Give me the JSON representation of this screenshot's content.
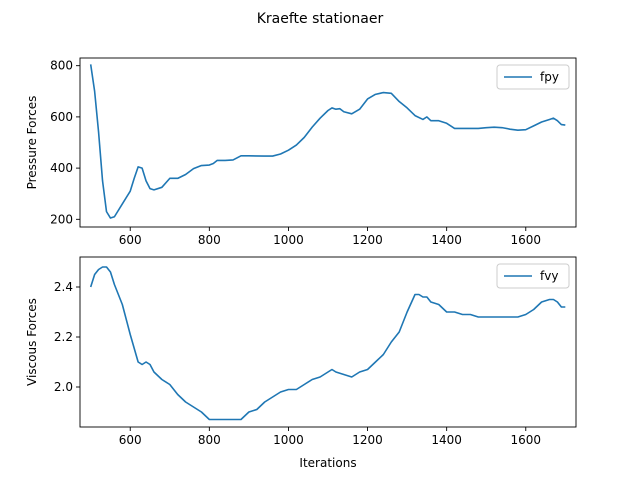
{
  "title": "Kraefte stationaer",
  "colors": {
    "series": "#1f77b4",
    "axis": "#000000",
    "legend_border": "#cccccc"
  },
  "chart_data": [
    {
      "type": "line",
      "ylabel": "Pressure Forces",
      "xlabel": "",
      "xlim": [
        473,
        1727
      ],
      "ylim": [
        170,
        830
      ],
      "xticks": [
        600,
        800,
        1000,
        1200,
        1400,
        1600
      ],
      "yticks": [
        200,
        400,
        600,
        800
      ],
      "legend": "top-right",
      "grid": false,
      "series": [
        {
          "name": "fpy",
          "points": [
            [
              500,
              805
            ],
            [
              510,
              700
            ],
            [
              520,
              540
            ],
            [
              530,
              350
            ],
            [
              540,
              230
            ],
            [
              550,
              205
            ],
            [
              560,
              210
            ],
            [
              580,
              260
            ],
            [
              600,
              310
            ],
            [
              610,
              360
            ],
            [
              620,
              405
            ],
            [
              630,
              400
            ],
            [
              640,
              350
            ],
            [
              650,
              320
            ],
            [
              660,
              315
            ],
            [
              680,
              325
            ],
            [
              700,
              360
            ],
            [
              720,
              360
            ],
            [
              740,
              375
            ],
            [
              760,
              398
            ],
            [
              780,
              410
            ],
            [
              800,
              412
            ],
            [
              810,
              418
            ],
            [
              820,
              430
            ],
            [
              840,
              430
            ],
            [
              860,
              432
            ],
            [
              880,
              448
            ],
            [
              900,
              448
            ],
            [
              940,
              447
            ],
            [
              960,
              447
            ],
            [
              980,
              455
            ],
            [
              1000,
              470
            ],
            [
              1020,
              490
            ],
            [
              1040,
              520
            ],
            [
              1060,
              560
            ],
            [
              1080,
              595
            ],
            [
              1100,
              625
            ],
            [
              1110,
              635
            ],
            [
              1120,
              630
            ],
            [
              1130,
              632
            ],
            [
              1140,
              620
            ],
            [
              1160,
              612
            ],
            [
              1180,
              630
            ],
            [
              1200,
              670
            ],
            [
              1220,
              688
            ],
            [
              1240,
              695
            ],
            [
              1260,
              692
            ],
            [
              1280,
              660
            ],
            [
              1300,
              635
            ],
            [
              1320,
              605
            ],
            [
              1340,
              590
            ],
            [
              1350,
              600
            ],
            [
              1360,
              585
            ],
            [
              1380,
              585
            ],
            [
              1400,
              575
            ],
            [
              1420,
              555
            ],
            [
              1440,
              555
            ],
            [
              1460,
              555
            ],
            [
              1480,
              555
            ],
            [
              1500,
              558
            ],
            [
              1520,
              560
            ],
            [
              1540,
              558
            ],
            [
              1560,
              552
            ],
            [
              1580,
              548
            ],
            [
              1600,
              550
            ],
            [
              1620,
              565
            ],
            [
              1640,
              580
            ],
            [
              1660,
              590
            ],
            [
              1670,
              595
            ],
            [
              1680,
              585
            ],
            [
              1690,
              570
            ],
            [
              1700,
              568
            ]
          ]
        }
      ]
    },
    {
      "type": "line",
      "ylabel": "Viscous Forces",
      "xlabel": "Iterations",
      "xlim": [
        473,
        1727
      ],
      "ylim": [
        1.84,
        2.52
      ],
      "xticks": [
        600,
        800,
        1000,
        1200,
        1400,
        1600
      ],
      "yticks": [
        2.0,
        2.2,
        2.4
      ],
      "legend": "top-right",
      "grid": false,
      "series": [
        {
          "name": "fvy",
          "points": [
            [
              500,
              2.4
            ],
            [
              510,
              2.45
            ],
            [
              520,
              2.47
            ],
            [
              530,
              2.48
            ],
            [
              540,
              2.48
            ],
            [
              550,
              2.46
            ],
            [
              560,
              2.41
            ],
            [
              580,
              2.33
            ],
            [
              600,
              2.21
            ],
            [
              620,
              2.1
            ],
            [
              630,
              2.09
            ],
            [
              640,
              2.1
            ],
            [
              650,
              2.09
            ],
            [
              660,
              2.06
            ],
            [
              680,
              2.03
            ],
            [
              700,
              2.01
            ],
            [
              720,
              1.97
            ],
            [
              740,
              1.94
            ],
            [
              760,
              1.92
            ],
            [
              780,
              1.9
            ],
            [
              800,
              1.87
            ],
            [
              820,
              1.87
            ],
            [
              840,
              1.87
            ],
            [
              860,
              1.87
            ],
            [
              880,
              1.87
            ],
            [
              900,
              1.9
            ],
            [
              920,
              1.91
            ],
            [
              940,
              1.94
            ],
            [
              960,
              1.96
            ],
            [
              980,
              1.98
            ],
            [
              1000,
              1.99
            ],
            [
              1020,
              1.99
            ],
            [
              1040,
              2.01
            ],
            [
              1060,
              2.03
            ],
            [
              1080,
              2.04
            ],
            [
              1100,
              2.06
            ],
            [
              1110,
              2.07
            ],
            [
              1120,
              2.06
            ],
            [
              1140,
              2.05
            ],
            [
              1160,
              2.04
            ],
            [
              1180,
              2.06
            ],
            [
              1200,
              2.07
            ],
            [
              1220,
              2.1
            ],
            [
              1240,
              2.13
            ],
            [
              1260,
              2.18
            ],
            [
              1280,
              2.22
            ],
            [
              1300,
              2.3
            ],
            [
              1320,
              2.37
            ],
            [
              1330,
              2.37
            ],
            [
              1340,
              2.36
            ],
            [
              1350,
              2.36
            ],
            [
              1360,
              2.34
            ],
            [
              1380,
              2.33
            ],
            [
              1400,
              2.3
            ],
            [
              1420,
              2.3
            ],
            [
              1440,
              2.29
            ],
            [
              1460,
              2.29
            ],
            [
              1480,
              2.28
            ],
            [
              1500,
              2.28
            ],
            [
              1520,
              2.28
            ],
            [
              1540,
              2.28
            ],
            [
              1560,
              2.28
            ],
            [
              1580,
              2.28
            ],
            [
              1600,
              2.29
            ],
            [
              1620,
              2.31
            ],
            [
              1640,
              2.34
            ],
            [
              1660,
              2.35
            ],
            [
              1670,
              2.35
            ],
            [
              1680,
              2.34
            ],
            [
              1690,
              2.32
            ],
            [
              1700,
              2.32
            ]
          ]
        }
      ]
    }
  ]
}
